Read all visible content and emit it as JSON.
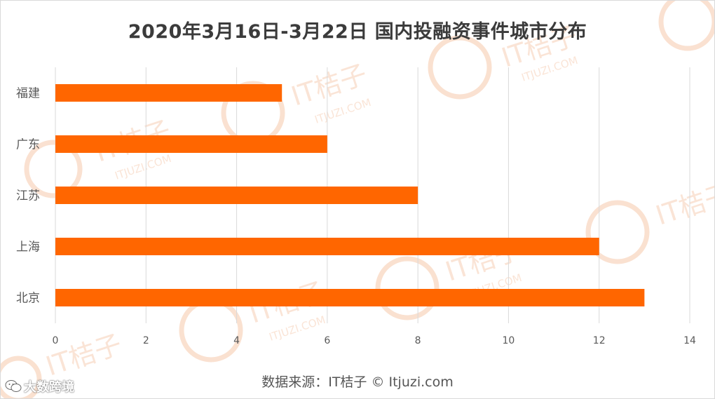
{
  "title": "2020年3月16日-3月22日 国内投融资事件城市分布",
  "source": "数据来源：IT桔子 © Itjuzi.com",
  "watermark": {
    "brand": "IT桔子",
    "site": "ITJUZI.COM",
    "corner_label": "大数跨境",
    "corner_icon": "wechat-icon"
  },
  "colors": {
    "bar": "#ff6600",
    "grid": "#d9d9d9",
    "axis_text": "#595959"
  },
  "chart_data": {
    "type": "bar",
    "orientation": "horizontal",
    "title": "2020年3月16日-3月22日 国内投融资事件城市分布",
    "categories": [
      "北京",
      "上海",
      "江苏",
      "广东",
      "福建"
    ],
    "values": [
      13,
      12,
      8,
      6,
      5
    ],
    "xlim": [
      0,
      14
    ],
    "xticks": [
      "0",
      "2",
      "4",
      "6",
      "8",
      "10",
      "12",
      "14"
    ],
    "xlabel": "",
    "ylabel": "",
    "grid": "vertical",
    "legend": "none"
  }
}
